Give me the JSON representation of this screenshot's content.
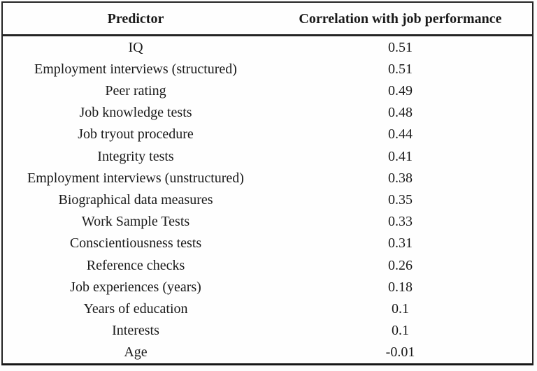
{
  "table": {
    "headers": [
      "Predictor",
      "Correlation with job performance"
    ],
    "rows": [
      {
        "predictor": "IQ",
        "correlation": "0.51"
      },
      {
        "predictor": "Employment interviews (structured)",
        "correlation": "0.51"
      },
      {
        "predictor": "Peer rating",
        "correlation": "0.49"
      },
      {
        "predictor": "Job knowledge tests",
        "correlation": "0.48"
      },
      {
        "predictor": "Job tryout procedure",
        "correlation": "0.44"
      },
      {
        "predictor": "Integrity tests",
        "correlation": "0.41"
      },
      {
        "predictor": "Employment interviews (unstructured)",
        "correlation": "0.38"
      },
      {
        "predictor": "Biographical data measures",
        "correlation": "0.35"
      },
      {
        "predictor": "Work Sample Tests",
        "correlation": "0.33"
      },
      {
        "predictor": "Conscientiousness tests",
        "correlation": "0.31"
      },
      {
        "predictor": "Reference checks",
        "correlation": "0.26"
      },
      {
        "predictor": "Job experiences (years)",
        "correlation": "0.18"
      },
      {
        "predictor": "Years of education",
        "correlation": "0.1"
      },
      {
        "predictor": "Interests",
        "correlation": "0.1"
      },
      {
        "predictor": "Age",
        "correlation": "-0.01"
      }
    ]
  },
  "colors": {
    "text": "#1a1a1a",
    "border": "#242424",
    "border_heavy": "#161616",
    "background": "#fdfdfd",
    "table_background": "#fefefe"
  },
  "chart_data": {
    "type": "table",
    "title": "",
    "columns": [
      "Predictor",
      "Correlation with job performance"
    ],
    "categories": [
      "IQ",
      "Employment interviews (structured)",
      "Peer rating",
      "Job knowledge tests",
      "Job tryout procedure",
      "Integrity tests",
      "Employment interviews (unstructured)",
      "Biographical data measures",
      "Work Sample Tests",
      "Conscientiousness tests",
      "Reference checks",
      "Job experiences (years)",
      "Years of education",
      "Interests",
      "Age"
    ],
    "values": [
      0.51,
      0.51,
      0.49,
      0.48,
      0.44,
      0.41,
      0.38,
      0.35,
      0.33,
      0.31,
      0.26,
      0.18,
      0.1,
      0.1,
      -0.01
    ],
    "layout": "two-column table, header row bold, all cells center-aligned, heavy rule under header and at bottom, no internal gridlines"
  }
}
